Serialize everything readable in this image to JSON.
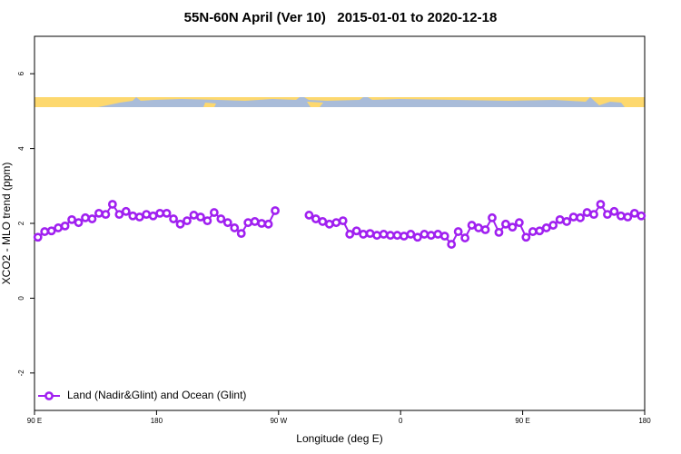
{
  "chart_data": {
    "type": "line",
    "title": "55N-60N April (Ver 10)   2015-01-01 to 2020-12-18",
    "xlabel": "Longitude (deg E)",
    "ylabel": "XCO2 - MLO trend (ppm)",
    "xlim": [
      90,
      540
    ],
    "xticks": [
      {
        "value": 90,
        "label": "90 E"
      },
      180,
      {
        "value": 270,
        "label": "90 W"
      },
      {
        "value": 360,
        "label": "0"
      },
      {
        "value": 450,
        "label": "90 E"
      },
      {
        "value": 540,
        "label": "180"
      }
    ],
    "ylim": [
      -3,
      7
    ],
    "yticks": [
      -2,
      0,
      2,
      4,
      6
    ],
    "legend": "bottom-left",
    "x": [
      92.5,
      97.5,
      102.5,
      107.5,
      112.5,
      117.5,
      122.5,
      127.5,
      132.5,
      137.5,
      142.5,
      147.5,
      152.5,
      157.5,
      162.5,
      167.5,
      172.5,
      177.5,
      182.5,
      187.5,
      192.5,
      197.5,
      202.5,
      207.5,
      212.5,
      217.5,
      222.5,
      227.5,
      232.5,
      237.5,
      242.5,
      247.5,
      252.5,
      257.5,
      262.5,
      267.5,
      272.5,
      277.5,
      282.5,
      287.5,
      292.5,
      297.5,
      302.5,
      307.5,
      312.5,
      317.5,
      322.5,
      327.5,
      332.5,
      337.5,
      342.5,
      347.5,
      352.5,
      357.5,
      362.5,
      367.5,
      372.5,
      377.5,
      382.5,
      387.5,
      392.5,
      397.5,
      402.5,
      407.5,
      412.5,
      417.5,
      422.5,
      427.5,
      432.5,
      437.5,
      442.5,
      447.5,
      452.5,
      457.5,
      462.5,
      467.5,
      472.5,
      477.5,
      482.5,
      487.5,
      492.5,
      497.5,
      502.5,
      507.5,
      512.5,
      517.5,
      522.5,
      527.5,
      532.5,
      537.5
    ],
    "series": [
      {
        "name": "Land (Nadir&Glint) and Ocean (Glint)",
        "color": "#a020f0",
        "values": [
          1.63,
          1.78,
          1.8,
          1.88,
          1.93,
          2.1,
          2.02,
          2.15,
          2.12,
          2.27,
          2.24,
          2.51,
          2.24,
          2.32,
          2.2,
          2.17,
          2.24,
          2.2,
          2.27,
          2.27,
          2.12,
          1.98,
          2.07,
          2.22,
          2.17,
          2.07,
          2.29,
          2.12,
          2.02,
          1.88,
          1.73,
          2.02,
          2.05,
          2.0,
          1.98,
          2.34,
          null,
          null,
          null,
          null,
          2.22,
          2.12,
          2.05,
          1.98,
          2.02,
          2.07,
          1.71,
          1.8,
          1.71,
          1.73,
          1.68,
          1.71,
          1.68,
          1.68,
          1.66,
          1.71,
          1.63,
          1.71,
          1.68,
          1.71,
          1.66,
          1.44,
          1.78,
          1.61,
          1.95,
          1.88,
          1.83,
          2.15,
          1.76,
          1.98,
          1.9,
          2.02,
          1.63,
          1.78,
          1.8,
          1.88,
          1.95,
          2.1,
          2.05,
          2.17,
          2.15,
          2.29,
          2.24,
          2.51,
          2.24,
          2.32,
          2.2,
          2.17,
          2.27,
          2.2
        ]
      }
    ]
  }
}
